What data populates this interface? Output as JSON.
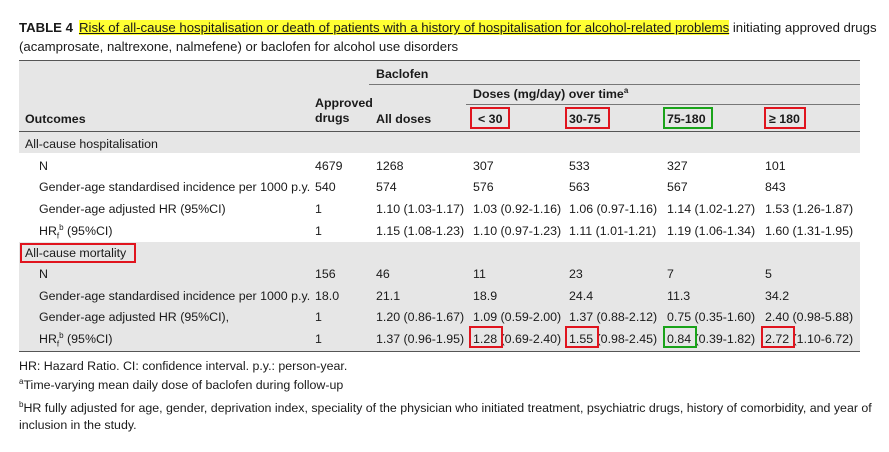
{
  "caption": {
    "label": "TABLE 4",
    "highlighted": "Risk of all-cause hospitalisation or death of patients with a history of hospitalisation for alcohol-related problems",
    "rest": "initiating approved drugs (acamprosate, naltrexone, nalmefene) or baclofen for alcohol use disorders"
  },
  "header": {
    "baclofen": "Baclofen",
    "doses": "Doses (mg/day) over time",
    "doses_sup": "a",
    "outcomes": "Outcomes",
    "approved_line1": "Approved",
    "approved_line2": "drugs",
    "all_doses": "All doses",
    "d1": "< 30",
    "d2": "30-75",
    "d3": "75-180",
    "d4": "≥ 180"
  },
  "sections": [
    {
      "title": "All-cause hospitalisation",
      "rows": [
        {
          "label": "N",
          "sup": "",
          "suffix": "",
          "cells": [
            "4679",
            "1268",
            "307",
            "533",
            "327",
            "101"
          ]
        },
        {
          "label": "Gender-age standardised incidence per 1000 p.y.",
          "sup": "",
          "suffix": "",
          "cells": [
            "540",
            "574",
            "576",
            "563",
            "567",
            "843"
          ]
        },
        {
          "label": "Gender-age adjusted HR (95%CI)",
          "sup": "",
          "suffix": "",
          "cells": [
            "1",
            "1.10 (1.03-1.17)",
            "1.03 (0.92-1.16)",
            "1.06 (0.97-1.16)",
            "1.14 (1.02-1.27)",
            "1.53 (1.26-1.87)"
          ]
        },
        {
          "label": "HR",
          "sub": "f",
          "sup": "b",
          "suffix": " (95%CI)",
          "cells": [
            "1",
            "1.15 (1.08-1.23)",
            "1.10 (0.97-1.23)",
            "1.11 (1.01-1.21)",
            "1.19 (1.06-1.34)",
            "1.60 (1.31-1.95)"
          ]
        }
      ]
    },
    {
      "title": "All-cause mortality",
      "rows": [
        {
          "label": "N",
          "sup": "",
          "suffix": "",
          "cells": [
            "156",
            "46",
            "11",
            "23",
            "7",
            "5"
          ]
        },
        {
          "label": "Gender-age standardised incidence per 1000 p.y.",
          "sup": "",
          "suffix": "",
          "cells": [
            "18.0",
            "21.1",
            "18.9",
            "24.4",
            "11.3",
            "34.2"
          ]
        },
        {
          "label": "Gender-age adjusted HR (95%CI),",
          "sup": "",
          "suffix": "",
          "cells": [
            "1",
            "1.20 (0.86-1.67)",
            "1.09 (0.59-2.00)",
            "1.37 (0.88-2.12)",
            "0.75 (0.35-1.60)",
            "2.40 (0.98-5.88)"
          ]
        },
        {
          "label": "HR",
          "sub": "f",
          "sup": "b",
          "suffix": " (95%CI)",
          "cells": [
            "1",
            "1.37 (0.96-1.95)",
            "1.28 (0.69-2.40)",
            "1.55 (0.98-2.45)",
            "0.84 (0.39-1.82)",
            "2.72 (1.10-6.72)"
          ]
        }
      ]
    }
  ],
  "footnotes": {
    "abbrev": "HR: Hazard Ratio. CI: confidence interval. p.y.: person-year.",
    "a_mark": "a",
    "a_text": "Time-varying mean daily dose of baclofen during follow-up",
    "b_mark": "b",
    "b_text": "HR fully adjusted for age, gender, deprivation index, speciality of the physician who initiated treatment, psychiatric drugs, history of comorbidity, and year of inclusion in the study."
  },
  "annotation_colors": {
    "red": "#e0141e",
    "green": "#1aa31a",
    "highlight": "#ffff33"
  }
}
